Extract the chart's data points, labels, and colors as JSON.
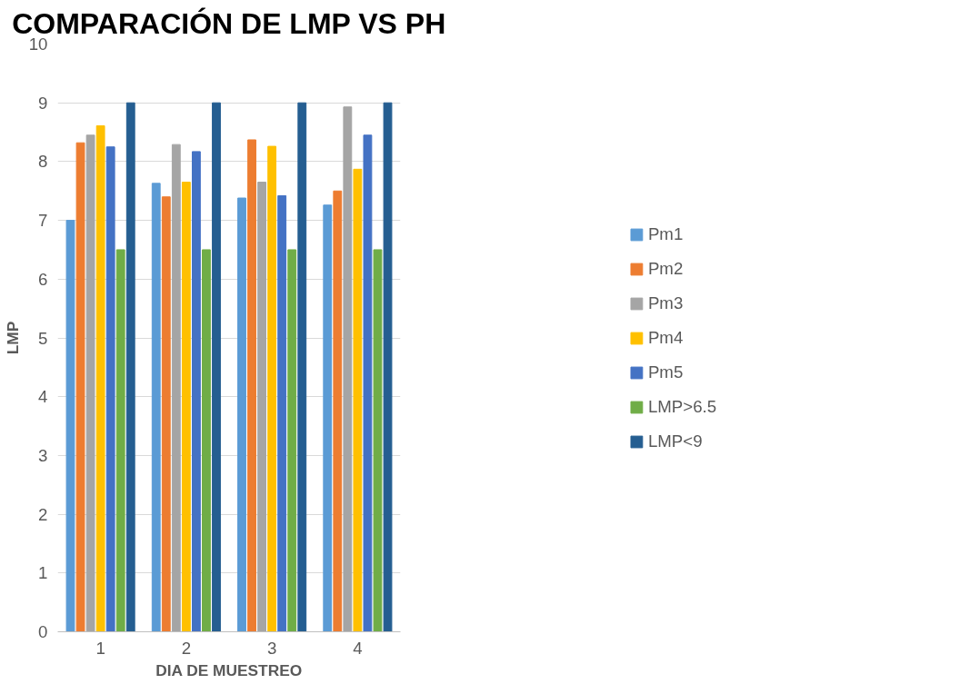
{
  "chart_data": {
    "type": "bar",
    "title": "COMPARACIÓN DE LMP VS PH",
    "xlabel": "DIA DE MUESTREO",
    "ylabel": "LMP",
    "categories": [
      "1",
      "2",
      "3",
      "4"
    ],
    "series": [
      {
        "name": "Pm1",
        "color": "#5b9bd5",
        "values": [
          7.0,
          7.63,
          7.38,
          7.26
        ]
      },
      {
        "name": "Pm2",
        "color": "#ed7d31",
        "values": [
          8.32,
          7.4,
          8.37,
          7.5
        ]
      },
      {
        "name": "Pm3",
        "color": "#a5a5a5",
        "values": [
          8.45,
          8.29,
          7.65,
          8.93
        ]
      },
      {
        "name": "Pm4",
        "color": "#ffc000",
        "values": [
          8.61,
          7.65,
          8.26,
          7.87
        ]
      },
      {
        "name": "Pm5",
        "color": "#4472c4",
        "values": [
          8.25,
          8.17,
          7.42,
          8.45
        ]
      },
      {
        "name": "LMP>6.5",
        "color": "#70ad47",
        "values": [
          6.5,
          6.5,
          6.5,
          6.5
        ]
      },
      {
        "name": "LMP<9",
        "color": "#255e91",
        "values": [
          9,
          9,
          9,
          9
        ]
      }
    ],
    "ylim": [
      0,
      10
    ],
    "yticks": [
      0,
      1,
      2,
      3,
      4,
      5,
      6,
      7,
      8,
      9,
      10
    ],
    "grid": "y",
    "legend": "right"
  }
}
